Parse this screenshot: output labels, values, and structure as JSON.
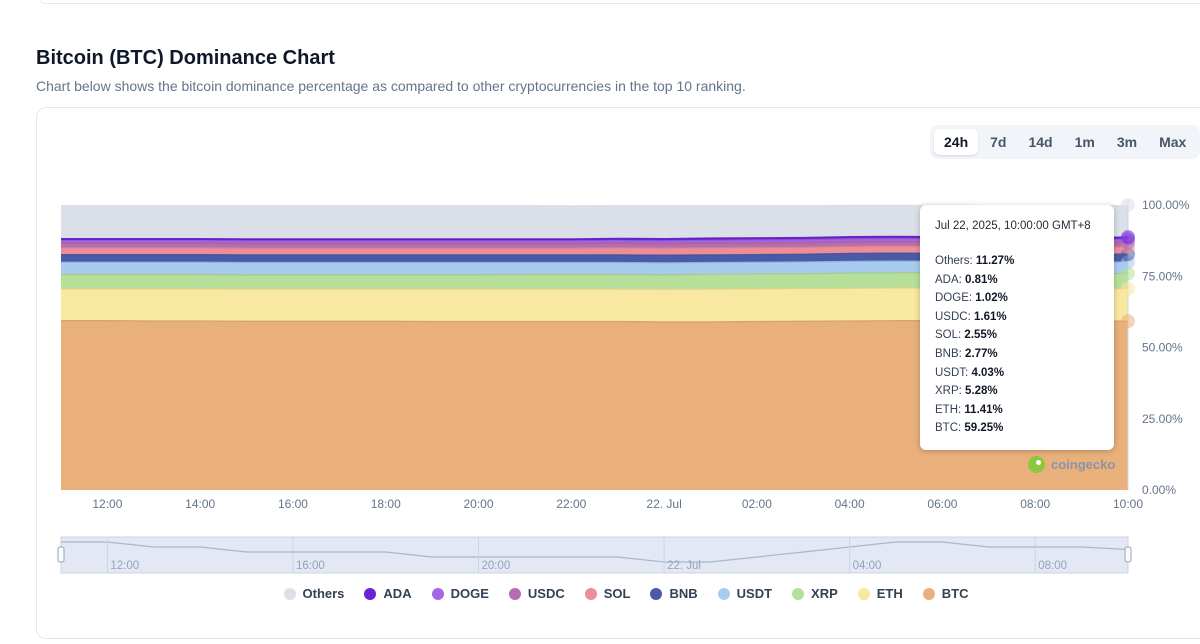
{
  "header": {
    "title": "Bitcoin (BTC) Dominance Chart",
    "subtitle": "Chart below shows the bitcoin dominance percentage as compared to other cryptocurrencies in the top 10 ranking."
  },
  "range_buttons": [
    {
      "label": "24h",
      "active": true
    },
    {
      "label": "7d",
      "active": false
    },
    {
      "label": "14d",
      "active": false
    },
    {
      "label": "1m",
      "active": false
    },
    {
      "label": "3m",
      "active": false
    },
    {
      "label": "Max",
      "active": false
    }
  ],
  "tooltip": {
    "date": "Jul 22, 2025, 10:00:00 GMT+8",
    "rows": [
      {
        "name": "Others:",
        "value": "11.27%"
      },
      {
        "name": "ADA:",
        "value": "0.81%"
      },
      {
        "name": "DOGE:",
        "value": "1.02%"
      },
      {
        "name": "USDC:",
        "value": "1.61%"
      },
      {
        "name": "SOL:",
        "value": "2.55%"
      },
      {
        "name": "BNB:",
        "value": "2.77%"
      },
      {
        "name": "USDT:",
        "value": "4.03%"
      },
      {
        "name": "XRP:",
        "value": "5.28%"
      },
      {
        "name": "ETH:",
        "value": "11.41%"
      },
      {
        "name": "BTC:",
        "value": "59.25%"
      }
    ]
  },
  "watermark": "coingecko",
  "chart_data": {
    "type": "area",
    "stacked": true,
    "x": [
      "11:00",
      "12:00",
      "13:00",
      "14:00",
      "15:00",
      "16:00",
      "17:00",
      "18:00",
      "19:00",
      "20:00",
      "21:00",
      "22:00",
      "23:00",
      "00:00",
      "01:00",
      "02:00",
      "03:00",
      "04:00",
      "05:00",
      "06:00",
      "07:00",
      "08:00",
      "09:00",
      "10:00"
    ],
    "x_ticks": [
      "12:00",
      "14:00",
      "16:00",
      "18:00",
      "20:00",
      "22:00",
      "22. Jul",
      "02:00",
      "04:00",
      "06:00",
      "08:00",
      "10:00"
    ],
    "y_ticks": [
      "100.00%",
      "75.00%",
      "50.00%",
      "25.00%",
      "0.00%"
    ],
    "ylim": [
      0,
      100
    ],
    "series": [
      {
        "name": "BTC",
        "color": "#e9b07b",
        "values": [
          59.4,
          59.4,
          59.3,
          59.3,
          59.2,
          59.2,
          59.2,
          59.2,
          59.1,
          59.1,
          59.1,
          59.1,
          59.1,
          59.0,
          59.0,
          59.1,
          59.2,
          59.3,
          59.4,
          59.4,
          59.3,
          59.3,
          59.3,
          59.25
        ]
      },
      {
        "name": "ETH",
        "color": "#f8e8a0",
        "values": [
          11.2,
          11.2,
          11.3,
          11.3,
          11.3,
          11.3,
          11.3,
          11.3,
          11.4,
          11.4,
          11.4,
          11.4,
          11.4,
          11.4,
          11.5,
          11.5,
          11.5,
          11.5,
          11.5,
          11.5,
          11.5,
          11.4,
          11.4,
          11.41
        ]
      },
      {
        "name": "XRP",
        "color": "#b6e09a",
        "values": [
          5.0,
          5.0,
          5.0,
          5.0,
          5.0,
          5.0,
          5.0,
          5.0,
          5.0,
          5.0,
          5.1,
          5.1,
          5.1,
          5.1,
          5.2,
          5.2,
          5.2,
          5.3,
          5.3,
          5.3,
          5.3,
          5.3,
          5.3,
          5.28
        ]
      },
      {
        "name": "USDT",
        "color": "#a8ccef",
        "values": [
          4.3,
          4.3,
          4.3,
          4.3,
          4.3,
          4.3,
          4.3,
          4.3,
          4.3,
          4.3,
          4.2,
          4.2,
          4.2,
          4.2,
          4.1,
          4.1,
          4.1,
          4.1,
          4.1,
          4.0,
          4.0,
          4.0,
          4.0,
          4.03
        ]
      },
      {
        "name": "BNB",
        "color": "#4a5aa8",
        "values": [
          2.7,
          2.7,
          2.7,
          2.7,
          2.7,
          2.7,
          2.7,
          2.7,
          2.7,
          2.7,
          2.7,
          2.7,
          2.7,
          2.7,
          2.7,
          2.7,
          2.7,
          2.8,
          2.8,
          2.8,
          2.8,
          2.8,
          2.8,
          2.77
        ]
      },
      {
        "name": "SOL",
        "color": "#eb8e98",
        "values": [
          2.4,
          2.4,
          2.4,
          2.4,
          2.4,
          2.4,
          2.4,
          2.4,
          2.4,
          2.4,
          2.4,
          2.4,
          2.5,
          2.5,
          2.5,
          2.5,
          2.5,
          2.5,
          2.5,
          2.5,
          2.5,
          2.5,
          2.5,
          2.55
        ]
      },
      {
        "name": "USDC",
        "color": "#b56cb0",
        "values": [
          1.6,
          1.6,
          1.6,
          1.6,
          1.6,
          1.6,
          1.6,
          1.6,
          1.6,
          1.6,
          1.6,
          1.6,
          1.6,
          1.6,
          1.6,
          1.6,
          1.6,
          1.6,
          1.6,
          1.6,
          1.6,
          1.6,
          1.6,
          1.61
        ]
      },
      {
        "name": "DOGE",
        "color": "#a667e6",
        "values": [
          0.9,
          0.9,
          0.9,
          0.9,
          0.9,
          0.9,
          0.9,
          0.9,
          0.9,
          0.9,
          0.9,
          0.9,
          0.9,
          0.9,
          1.0,
          1.0,
          1.0,
          1.0,
          1.0,
          1.0,
          1.0,
          1.0,
          1.0,
          1.02
        ]
      },
      {
        "name": "ADA",
        "color": "#6b21d4",
        "values": [
          0.7,
          0.7,
          0.7,
          0.7,
          0.7,
          0.7,
          0.7,
          0.7,
          0.7,
          0.7,
          0.7,
          0.7,
          0.8,
          0.8,
          0.8,
          0.8,
          0.8,
          0.8,
          0.8,
          0.8,
          0.8,
          0.8,
          0.8,
          0.81
        ]
      },
      {
        "name": "Others",
        "color": "#dbdfe7",
        "values": [
          11.8,
          11.8,
          11.8,
          11.8,
          11.9,
          11.9,
          11.9,
          11.9,
          11.9,
          11.9,
          11.9,
          11.8,
          11.7,
          11.8,
          11.6,
          11.5,
          11.4,
          11.2,
          11.1,
          11.2,
          11.2,
          11.3,
          11.3,
          11.27
        ]
      }
    ],
    "legend": [
      "Others",
      "ADA",
      "DOGE",
      "USDC",
      "SOL",
      "BNB",
      "USDT",
      "XRP",
      "ETH",
      "BTC"
    ],
    "legend_position": "bottom",
    "navigator": {
      "ticks": [
        "12:00",
        "16:00",
        "20:00",
        "22. Jul",
        "04:00",
        "08:00"
      ],
      "values": [
        59.4,
        59.4,
        59.3,
        59.3,
        59.2,
        59.2,
        59.2,
        59.2,
        59.1,
        59.1,
        59.1,
        59.1,
        59.1,
        59.0,
        59.0,
        59.1,
        59.2,
        59.3,
        59.4,
        59.4,
        59.3,
        59.3,
        59.3,
        59.25
      ]
    }
  }
}
